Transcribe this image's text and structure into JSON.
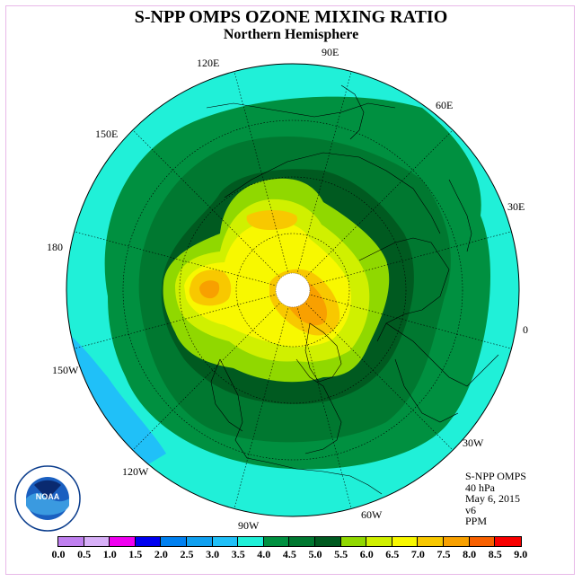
{
  "title": "S-NPP OMPS OZONE MIXING RATIO",
  "subtitle": "Northern Hemisphere",
  "longitude_labels": [
    "90E",
    "60E",
    "30E",
    "0",
    "30W",
    "60W",
    "90W",
    "120W",
    "150W",
    "180",
    "150E",
    "120E"
  ],
  "info": {
    "instrument": "S-NPP OMPS",
    "pressure": "40 hPa",
    "date": "May 6, 2015",
    "version": "v6",
    "units": "PPM"
  },
  "colorbar": {
    "labels": [
      "0.0",
      "0.5",
      "1.0",
      "1.5",
      "2.0",
      "2.5",
      "3.0",
      "3.5",
      "4.0",
      "4.5",
      "5.0",
      "5.5",
      "6.0",
      "6.5",
      "7.0",
      "7.5",
      "8.0",
      "8.5",
      "9.0"
    ],
    "colors": [
      "#c080f0",
      "#d8b0f8",
      "#f000f0",
      "#0000f0",
      "#0080f0",
      "#10a0f0",
      "#20c0f8",
      "#20f0d8",
      "#009040",
      "#007830",
      "#005a20",
      "#90d800",
      "#d0f000",
      "#f8f800",
      "#f8c800",
      "#f8a000",
      "#f86000",
      "#f80000",
      "#905030"
    ]
  },
  "colors": {
    "cyan": "#20f0d8",
    "light_blue": "#20c0f8",
    "green_4": "#009040",
    "green_45": "#007830",
    "green_5": "#005a20",
    "lime": "#90d800",
    "yellow_green": "#d0f000",
    "yellow": "#f8f800",
    "gold": "#f8c800",
    "orange": "#f8a000"
  },
  "logo": {
    "name": "NOAA"
  }
}
